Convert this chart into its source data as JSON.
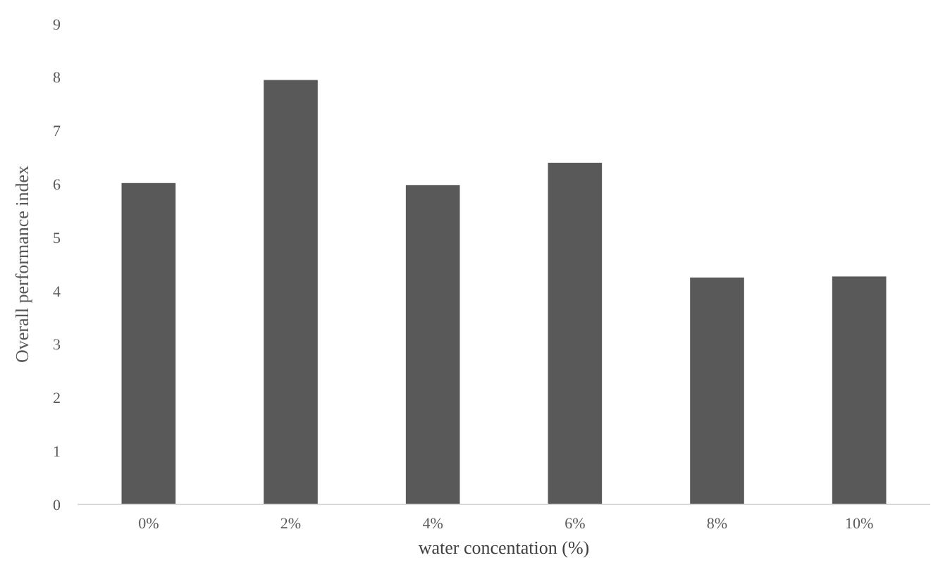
{
  "chart_data": {
    "type": "bar",
    "xlabel": "water concentation (%)",
    "ylabel": "Overall performance index",
    "categories": [
      "0%",
      "2%",
      "4%",
      "6%",
      "8%",
      "10%"
    ],
    "values": [
      6.02,
      7.95,
      5.98,
      6.4,
      4.25,
      4.27
    ],
    "color": "#595959",
    "ylim": [
      0,
      9
    ],
    "yticks": [
      0,
      1,
      2,
      3,
      4,
      5,
      6,
      7,
      8,
      9
    ],
    "grid": false
  }
}
